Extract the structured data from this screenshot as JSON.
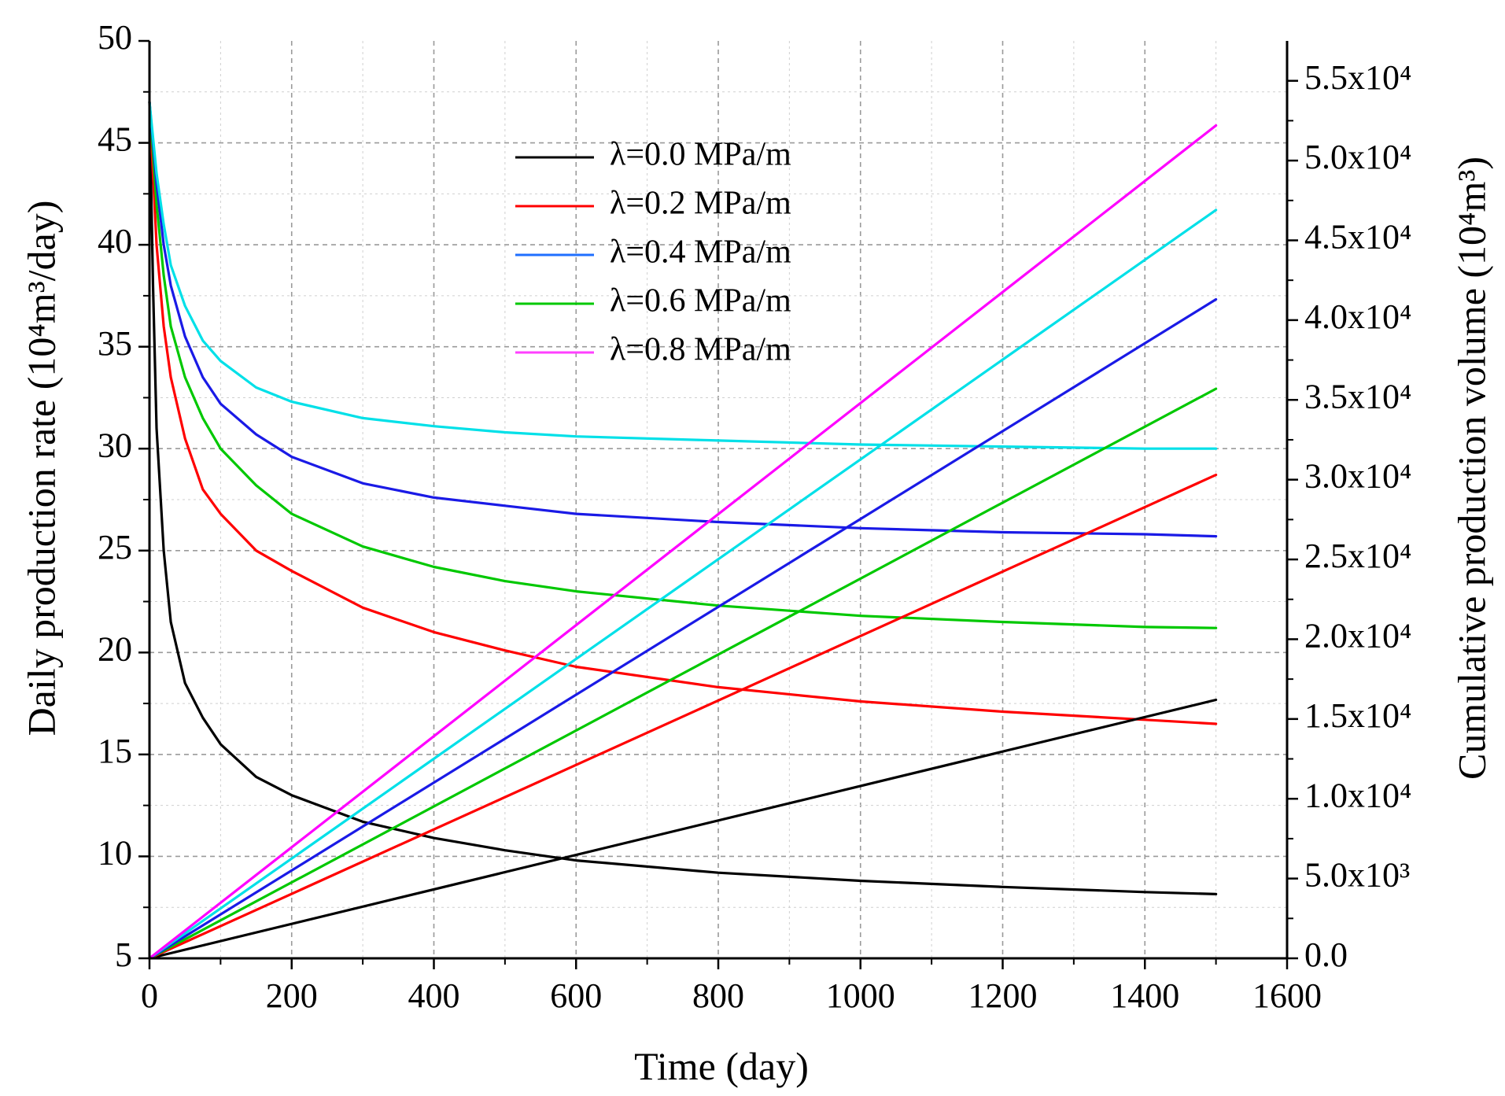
{
  "chart_data": {
    "type": "line",
    "title": "",
    "xlabel": "Time (day)",
    "ylabel": "Daily production rate (10⁴m³/day)",
    "ylabel_right": "Cumulative production volume (10⁴m³)",
    "xlim": [
      0,
      1600
    ],
    "ylim": [
      5,
      50
    ],
    "ylim_right": [
      0,
      57500
    ],
    "x_ticks": [
      0,
      200,
      400,
      600,
      800,
      1000,
      1200,
      1400,
      1600
    ],
    "y_ticks": [
      5,
      10,
      15,
      20,
      25,
      30,
      35,
      40,
      45,
      50
    ],
    "y_ticks_right": [
      {
        "value": 0,
        "label": "0.0"
      },
      {
        "value": 5000,
        "label": "5.0x10³"
      },
      {
        "value": 10000,
        "label": "1.0x10⁴"
      },
      {
        "value": 15000,
        "label": "1.5x10⁴"
      },
      {
        "value": 20000,
        "label": "2.0x10⁴"
      },
      {
        "value": 25000,
        "label": "2.5x10⁴"
      },
      {
        "value": 30000,
        "label": "3.0x10⁴"
      },
      {
        "value": 35000,
        "label": "3.5x10⁴"
      },
      {
        "value": 40000,
        "label": "4.0x10⁴"
      },
      {
        "value": 45000,
        "label": "4.5x10⁴"
      },
      {
        "value": 50000,
        "label": "5.0x10⁴"
      },
      {
        "value": 55000,
        "label": "5.5x10⁴"
      }
    ],
    "grid": true,
    "legend_position": "top-center",
    "legend": [
      {
        "label": "λ=0.0 MPa/m",
        "color": "#000000"
      },
      {
        "label": "λ=0.2 MPa/m",
        "color": "#ff0000"
      },
      {
        "label": "λ=0.4 MPa/m",
        "color": "#1f6fff"
      },
      {
        "label": "λ=0.6 MPa/m",
        "color": "#00c800"
      },
      {
        "label": "λ=0.8 MPa/m",
        "color": "#ff40ff"
      }
    ],
    "series": [
      {
        "axis": "left",
        "color": "#000000",
        "x": [
          0,
          5,
          10,
          20,
          30,
          50,
          75,
          100,
          150,
          200,
          300,
          400,
          500,
          600,
          800,
          1000,
          1200,
          1400,
          1500
        ],
        "y": [
          47,
          38,
          31,
          25,
          21.5,
          18.5,
          16.8,
          15.5,
          13.9,
          13.0,
          11.7,
          10.9,
          10.3,
          9.8,
          9.2,
          8.8,
          8.5,
          8.25,
          8.15
        ]
      },
      {
        "axis": "left",
        "color": "#ff0000",
        "x": [
          0,
          10,
          20,
          30,
          50,
          75,
          100,
          150,
          200,
          300,
          400,
          500,
          600,
          800,
          1000,
          1200,
          1400,
          1500
        ],
        "y": [
          47,
          40,
          36,
          33.5,
          30.5,
          28,
          26.8,
          25,
          24,
          22.2,
          21,
          20.1,
          19.3,
          18.3,
          17.6,
          17.1,
          16.7,
          16.5
        ]
      },
      {
        "axis": "left",
        "color": "#00c800",
        "x": [
          0,
          10,
          20,
          30,
          50,
          75,
          100,
          150,
          200,
          300,
          400,
          500,
          600,
          800,
          1000,
          1200,
          1400,
          1500
        ],
        "y": [
          47,
          42,
          38.5,
          36,
          33.5,
          31.5,
          30,
          28.2,
          26.8,
          25.2,
          24.2,
          23.5,
          23.0,
          22.3,
          21.8,
          21.5,
          21.25,
          21.2
        ]
      },
      {
        "axis": "left",
        "color": "#1a1ae6",
        "x": [
          0,
          10,
          20,
          30,
          50,
          75,
          100,
          150,
          200,
          300,
          400,
          500,
          600,
          800,
          1000,
          1200,
          1400,
          1500
        ],
        "y": [
          47,
          43,
          40,
          38,
          35.5,
          33.5,
          32.2,
          30.7,
          29.6,
          28.3,
          27.6,
          27.2,
          26.8,
          26.4,
          26.1,
          25.9,
          25.8,
          25.7
        ]
      },
      {
        "axis": "left",
        "color": "#00e0e8",
        "x": [
          0,
          10,
          20,
          30,
          50,
          75,
          100,
          150,
          200,
          300,
          400,
          500,
          600,
          800,
          1000,
          1200,
          1400,
          1500
        ],
        "y": [
          47,
          43.5,
          41,
          39,
          37,
          35.3,
          34.3,
          33,
          32.3,
          31.5,
          31.1,
          30.8,
          30.6,
          30.4,
          30.2,
          30.1,
          30.0,
          30.0
        ]
      },
      {
        "axis": "right",
        "color": "#000000",
        "x": [
          0,
          1500
        ],
        "y": [
          0,
          16200
        ]
      },
      {
        "axis": "right",
        "color": "#ff0000",
        "x": [
          0,
          1500
        ],
        "y": [
          0,
          30300
        ]
      },
      {
        "axis": "right",
        "color": "#00c800",
        "x": [
          0,
          1500
        ],
        "y": [
          0,
          35700
        ]
      },
      {
        "axis": "right",
        "color": "#1a1ae6",
        "x": [
          0,
          1500
        ],
        "y": [
          0,
          41300
        ]
      },
      {
        "axis": "right",
        "color": "#00e0e8",
        "x": [
          0,
          1500
        ],
        "y": [
          0,
          46900
        ]
      },
      {
        "axis": "right",
        "color": "#ff00ff",
        "x": [
          0,
          1500
        ],
        "y": [
          0,
          52200
        ]
      }
    ]
  }
}
